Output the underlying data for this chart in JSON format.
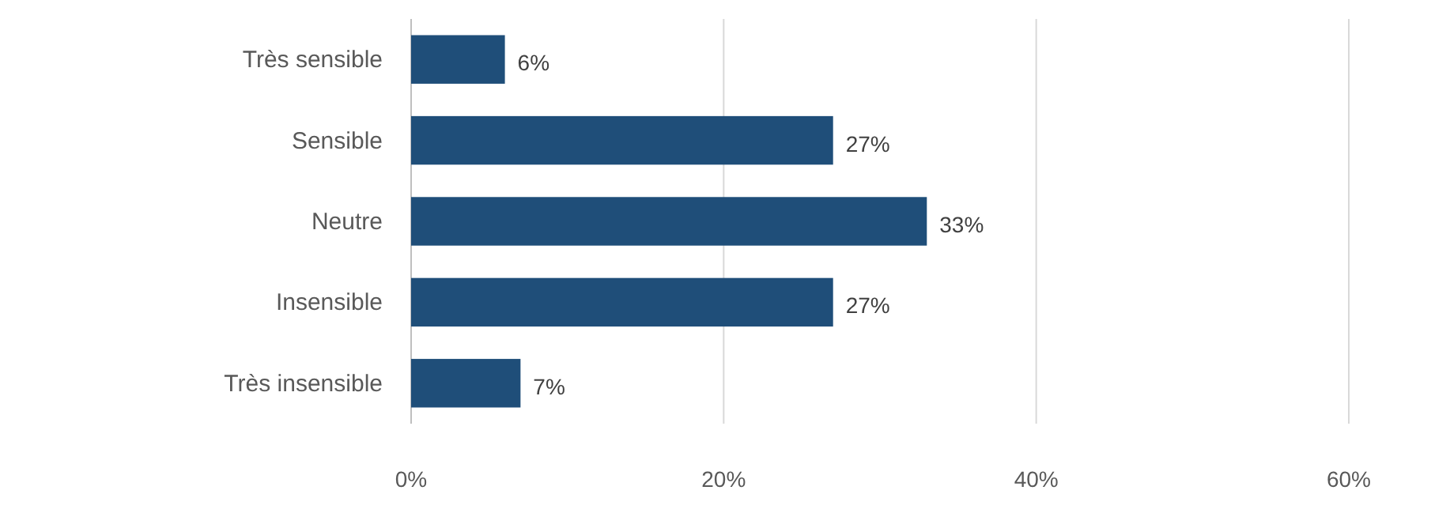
{
  "chart_data": {
    "type": "bar",
    "orientation": "horizontal",
    "categories": [
      "Très sensible",
      "Sensible",
      "Neutre",
      "Insensible",
      "Très insensible"
    ],
    "values": [
      6,
      27,
      33,
      27,
      7
    ],
    "color": "#1f4e79",
    "value_labels": [
      "6%",
      "27%",
      "33%",
      "27%",
      "7%"
    ],
    "xlim": [
      0,
      60
    ],
    "xticks": [
      {
        "value": 0,
        "label": "0%"
      },
      {
        "value": 20,
        "label": "20%"
      },
      {
        "value": 40,
        "label": "40%"
      },
      {
        "value": 60,
        "label": "60%"
      }
    ],
    "grid": "x"
  }
}
